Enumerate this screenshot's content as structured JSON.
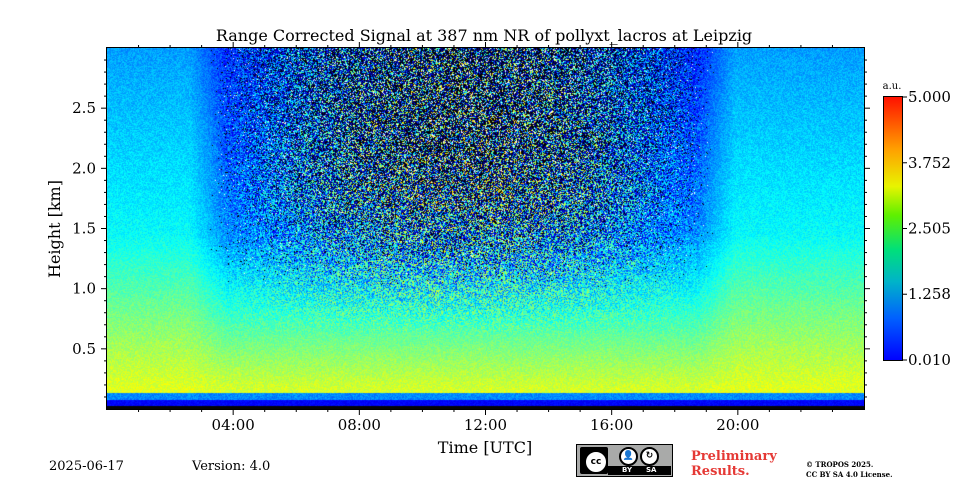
{
  "chart_data": {
    "type": "heatmap",
    "title": "Range Corrected Signal at 387 nm NR of pollyxt_lacros at Leipzig",
    "xlabel": "Time [UTC]",
    "ylabel": "Height [km]",
    "xlim_hours": [
      0,
      24
    ],
    "ylim_km": [
      0,
      3.0
    ],
    "x_ticks": [
      {
        "value": 4,
        "label": "04:00"
      },
      {
        "value": 8,
        "label": "08:00"
      },
      {
        "value": 12,
        "label": "12:00"
      },
      {
        "value": 16,
        "label": "16:00"
      },
      {
        "value": 20,
        "label": "20:00"
      }
    ],
    "y_ticks": [
      {
        "value": 0.5,
        "label": "0.5"
      },
      {
        "value": 1.0,
        "label": "1.0"
      },
      {
        "value": 1.5,
        "label": "1.5"
      },
      {
        "value": 2.0,
        "label": "2.0"
      },
      {
        "value": 2.5,
        "label": "2.5"
      }
    ],
    "colorbar": {
      "unit": "a.u.",
      "min": 0.01,
      "max": 5.0,
      "ticks": [
        "0.010",
        "1.258",
        "2.505",
        "3.752",
        "5.000"
      ],
      "tick_values": [
        0.01,
        1.258,
        2.505,
        3.752,
        5.0
      ],
      "colormap": "jet"
    },
    "noisy_daytime_hours": [
      3.2,
      19.3
    ],
    "grid": false
  },
  "footer": {
    "date": "2025-06-17",
    "version": "Version: 4.0",
    "preliminary": "Preliminary\nResults.",
    "copyright": "© TROPOS 2025.\nCC BY SA 4.0 License.",
    "license_badge": {
      "logo": "cc",
      "by": "BY",
      "sa": "SA"
    }
  },
  "colors": {
    "preliminary": "#e53935",
    "badge_bg": "#a9aaa9"
  }
}
